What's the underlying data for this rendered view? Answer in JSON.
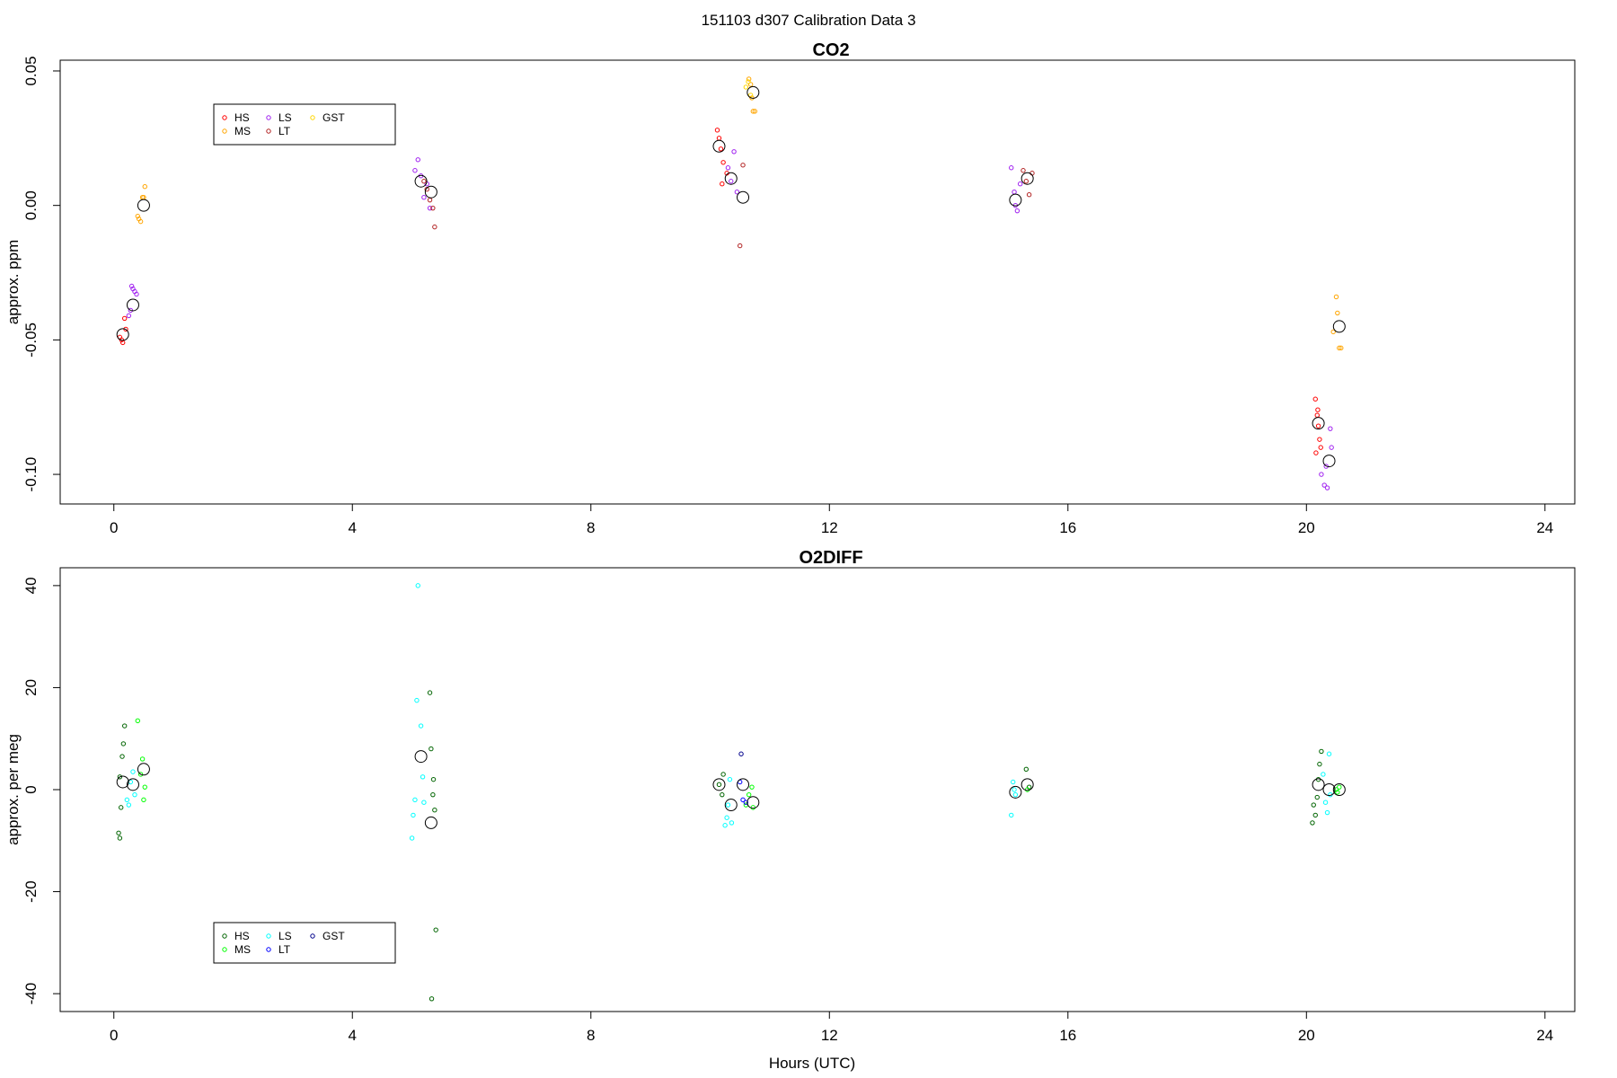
{
  "figure": {
    "title": "151103   d307   Calibration Data 3",
    "xlabel": "Hours (UTC)"
  },
  "chart_data": [
    {
      "type": "scatter",
      "title": "CO2",
      "xlabel": "",
      "ylabel": "approx. ppm",
      "xlim": [
        -0.9,
        24.5
      ],
      "ylim": [
        -0.111,
        0.054
      ],
      "xticks": [
        0,
        4,
        8,
        12,
        16,
        20,
        24
      ],
      "yticks": [
        -0.1,
        -0.05,
        0.0,
        0.05
      ],
      "ytick_labels": [
        "-0.10",
        "-0.05",
        "0.00",
        "0.05"
      ],
      "grid": false,
      "legend": {
        "placement": "top-left",
        "entries": [
          {
            "name": "HS",
            "color": "#ff0000"
          },
          {
            "name": "MS",
            "color": "#ffa500"
          },
          {
            "name": "LS",
            "color": "#a020f0"
          },
          {
            "name": "LT",
            "color": "#b22222"
          },
          {
            "name": "GST",
            "color": "#ffd700"
          }
        ]
      },
      "series": [
        {
          "name": "HS",
          "color": "#ff0000",
          "x": [
            0.1,
            0.15,
            0.2,
            0.18,
            0.13,
            10.12,
            10.15,
            10.18,
            10.22,
            10.28,
            10.2,
            20.15,
            20.18,
            20.2,
            20.22,
            20.24,
            20.16,
            20.19
          ],
          "y": [
            -0.049,
            -0.051,
            -0.046,
            -0.042,
            -0.05,
            0.028,
            0.025,
            0.021,
            0.016,
            0.012,
            0.008,
            -0.072,
            -0.078,
            -0.082,
            -0.087,
            -0.09,
            -0.092,
            -0.076
          ]
        },
        {
          "name": "MS",
          "color": "#ffa500",
          "x": [
            0.4,
            0.42,
            0.45,
            0.48,
            0.5,
            0.52,
            10.65,
            10.68,
            10.7,
            10.72,
            10.75,
            20.45,
            20.5,
            20.52,
            20.55,
            20.58
          ],
          "y": [
            -0.004,
            -0.005,
            -0.006,
            0.003,
            0.003,
            0.007,
            0.047,
            0.045,
            0.04,
            0.035,
            0.035,
            -0.047,
            -0.034,
            -0.04,
            -0.053,
            -0.053
          ]
        },
        {
          "name": "LS",
          "color": "#a020f0",
          "x": [
            0.25,
            0.28,
            0.32,
            0.35,
            0.38,
            0.3,
            5.05,
            5.1,
            5.15,
            5.2,
            5.25,
            5.3,
            10.3,
            10.35,
            10.4,
            10.45,
            15.05,
            15.1,
            15.15,
            15.2,
            15.12,
            20.25,
            20.3,
            20.35,
            20.4,
            20.42,
            20.33
          ],
          "y": [
            -0.041,
            -0.039,
            -0.031,
            -0.032,
            -0.033,
            -0.03,
            0.013,
            0.017,
            0.011,
            0.003,
            0.008,
            -0.001,
            0.014,
            0.009,
            0.02,
            0.005,
            0.014,
            0.005,
            -0.002,
            0.008,
            0.0,
            -0.1,
            -0.104,
            -0.105,
            -0.083,
            -0.09,
            -0.097
          ]
        },
        {
          "name": "LT",
          "color": "#b22222",
          "x": [
            5.2,
            5.25,
            5.3,
            5.35,
            5.38,
            10.5,
            10.55,
            15.25,
            15.3,
            15.35,
            15.4
          ],
          "y": [
            0.009,
            0.006,
            0.002,
            -0.001,
            -0.008,
            -0.015,
            0.015,
            0.013,
            0.009,
            0.004,
            0.012
          ]
        },
        {
          "name": "GST",
          "color": "#ffd700",
          "x": [
            10.6,
            10.64,
            10.68
          ],
          "y": [
            0.044,
            0.046,
            0.041
          ]
        }
      ],
      "means": {
        "x": [
          0.15,
          0.32,
          0.5,
          5.15,
          5.32,
          10.15,
          10.35,
          10.55,
          10.72,
          15.12,
          15.32,
          20.2,
          20.38,
          20.55
        ],
        "y": [
          -0.048,
          -0.037,
          0.0,
          0.009,
          0.005,
          0.022,
          0.01,
          0.003,
          0.042,
          0.002,
          0.01,
          -0.081,
          -0.095,
          -0.045
        ]
      }
    },
    {
      "type": "scatter",
      "title": "O2DIFF",
      "xlabel": "Hours (UTC)",
      "ylabel": "approx. per meg",
      "xlim": [
        -0.9,
        24.5
      ],
      "ylim": [
        -43.5,
        43.5
      ],
      "xticks": [
        0,
        4,
        8,
        12,
        16,
        20,
        24
      ],
      "yticks": [
        -40,
        -20,
        0,
        20,
        40
      ],
      "ytick_labels": [
        "-40",
        "-20",
        "0",
        "20",
        "40"
      ],
      "grid": false,
      "legend": {
        "placement": "bottom-left",
        "entries": [
          {
            "name": "HS",
            "color": "#006400"
          },
          {
            "name": "MS",
            "color": "#00ff00"
          },
          {
            "name": "LS",
            "color": "#00ffff"
          },
          {
            "name": "LT",
            "color": "#0000ff"
          },
          {
            "name": "GST",
            "color": "#00008b"
          }
        ]
      },
      "series": [
        {
          "name": "HS",
          "color": "#006400",
          "x": [
            0.08,
            0.1,
            0.12,
            0.14,
            0.16,
            0.18,
            0.1,
            5.3,
            5.32,
            5.35,
            5.38,
            5.4,
            5.33,
            5.36,
            10.15,
            10.2,
            10.22,
            15.3,
            15.35,
            20.1,
            20.15,
            20.18,
            20.2,
            20.22,
            20.25,
            20.12
          ],
          "y": [
            -8.5,
            -9.5,
            -3.5,
            6.5,
            9.0,
            12.5,
            2.5,
            19.0,
            8.0,
            -1.0,
            -4.0,
            -27.5,
            -41.0,
            2.0,
            1.0,
            -1.0,
            3.0,
            4.0,
            0.5,
            -6.5,
            -5.0,
            -1.5,
            2.0,
            5.0,
            7.5,
            -3.0
          ]
        },
        {
          "name": "MS",
          "color": "#00ff00",
          "x": [
            0.4,
            0.45,
            0.48,
            0.5,
            0.52,
            10.6,
            10.65,
            10.7,
            10.72,
            15.32,
            20.5,
            20.52,
            20.55
          ],
          "y": [
            13.5,
            3.0,
            6.0,
            -2.0,
            0.5,
            -3.0,
            -1.0,
            0.5,
            -3.5,
            0.0,
            0.0,
            -0.5,
            0.5
          ]
        },
        {
          "name": "LS",
          "color": "#00ffff",
          "x": [
            0.22,
            0.25,
            0.28,
            0.32,
            0.35,
            5.0,
            5.05,
            5.08,
            5.1,
            5.15,
            5.18,
            5.2,
            5.02,
            10.25,
            10.28,
            10.3,
            10.33,
            10.36,
            15.05,
            15.08,
            15.1,
            15.12,
            20.28,
            20.32,
            20.35,
            20.38,
            20.4
          ],
          "y": [
            -2.0,
            -3.0,
            1.5,
            3.5,
            -1.0,
            -9.5,
            -2.0,
            17.5,
            40.0,
            12.5,
            2.5,
            -2.5,
            -5.0,
            -7.0,
            -5.5,
            -3.0,
            2.0,
            -6.5,
            -5.0,
            1.5,
            0.0,
            -1.0,
            3.0,
            -2.5,
            -4.5,
            7.0,
            -1.0
          ]
        },
        {
          "name": "LT",
          "color": "#0000ff",
          "x": [
            10.5,
            10.55,
            10.6
          ],
          "y": [
            1.5,
            -2.0,
            -2.5
          ]
        },
        {
          "name": "GST",
          "color": "#00008b",
          "x": [
            10.52
          ],
          "y": [
            7.0
          ]
        }
      ],
      "means": {
        "x": [
          0.15,
          0.32,
          0.5,
          5.15,
          5.32,
          10.15,
          10.35,
          10.55,
          10.72,
          15.12,
          15.32,
          20.2,
          20.38,
          20.55
        ],
        "y": [
          1.5,
          1.0,
          4.0,
          6.5,
          -6.5,
          1.0,
          -3.0,
          1.0,
          -2.5,
          -0.5,
          1.0,
          1.0,
          0.0,
          0.0
        ]
      }
    }
  ]
}
